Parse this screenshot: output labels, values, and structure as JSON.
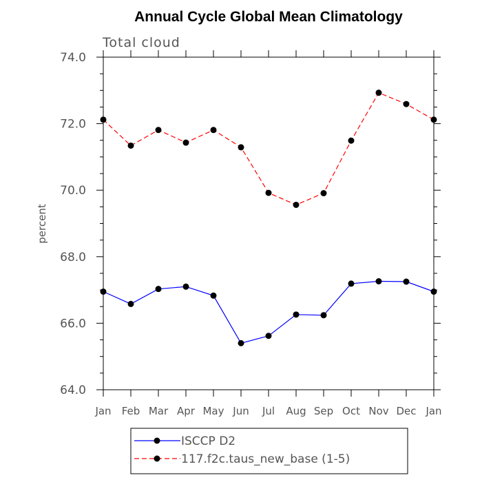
{
  "chart_data": {
    "type": "line",
    "title": "Annual Cycle Global Mean Climatology",
    "subtitle": "Total cloud",
    "xlabel": "",
    "ylabel": "percent",
    "categories": [
      "Jan",
      "Feb",
      "Mar",
      "Apr",
      "May",
      "Jun",
      "Jul",
      "Aug",
      "Sep",
      "Oct",
      "Nov",
      "Dec",
      "Jan"
    ],
    "ylim": [
      64.0,
      74.0
    ],
    "yticks": [
      "64.0",
      "66.0",
      "68.0",
      "70.0",
      "72.0",
      "74.0"
    ],
    "ytick_values": [
      64,
      66,
      68,
      70,
      72,
      74
    ],
    "grid": false,
    "legend_position": "bottom-center",
    "series": [
      {
        "name": "ISCCP D2",
        "color": "#0000ff",
        "style": "solid",
        "marker": "circle",
        "values": [
          66.95,
          66.58,
          67.03,
          67.1,
          66.83,
          65.4,
          65.62,
          66.26,
          66.24,
          67.19,
          67.26,
          67.25,
          66.95
        ]
      },
      {
        "name": "117.f2c.taus_new_base (1-5)",
        "color": "#ff0000",
        "style": "dashed",
        "marker": "circle",
        "values": [
          72.12,
          71.34,
          71.81,
          71.43,
          71.81,
          71.29,
          69.92,
          69.56,
          69.91,
          71.49,
          72.93,
          72.59,
          72.12
        ]
      }
    ]
  }
}
